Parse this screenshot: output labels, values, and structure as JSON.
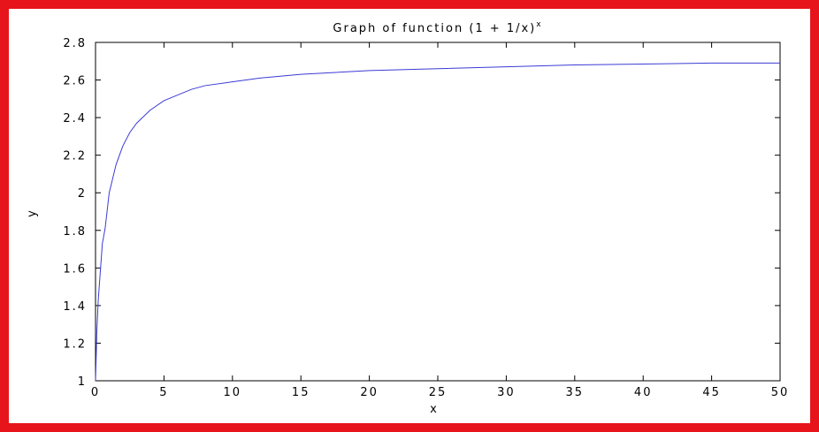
{
  "chart_data": {
    "type": "line",
    "title": "Graph of function (1 + 1/x)",
    "title_superscript": "x",
    "xlabel": "x",
    "ylabel": "y",
    "xlim": [
      0,
      50
    ],
    "ylim": [
      1,
      2.8
    ],
    "xticks": [
      "0",
      "5",
      "10",
      "15",
      "20",
      "25",
      "30",
      "35",
      "40",
      "45",
      "50"
    ],
    "yticks": [
      "1",
      "1.2",
      "1.4",
      "1.6",
      "1.8",
      "2",
      "2.2",
      "2.4",
      "2.6",
      "2.8"
    ],
    "grid": false,
    "line_color": "#3b3bd6",
    "frame_color": "#e8141b",
    "series": [
      {
        "x": [
          0,
          0.1,
          0.2,
          0.3,
          0.5,
          0.7,
          1,
          1.5,
          2,
          2.5,
          3,
          4,
          5,
          6,
          7,
          8,
          10,
          12,
          15,
          20,
          25,
          30,
          35,
          40,
          45,
          50
        ],
        "values": [
          1.0,
          1.27,
          1.43,
          1.53,
          1.73,
          1.81,
          2.0,
          2.15,
          2.25,
          2.32,
          2.37,
          2.44,
          2.49,
          2.52,
          2.55,
          2.57,
          2.59,
          2.61,
          2.63,
          2.65,
          2.66,
          2.67,
          2.68,
          2.685,
          2.69,
          2.69
        ]
      }
    ]
  }
}
